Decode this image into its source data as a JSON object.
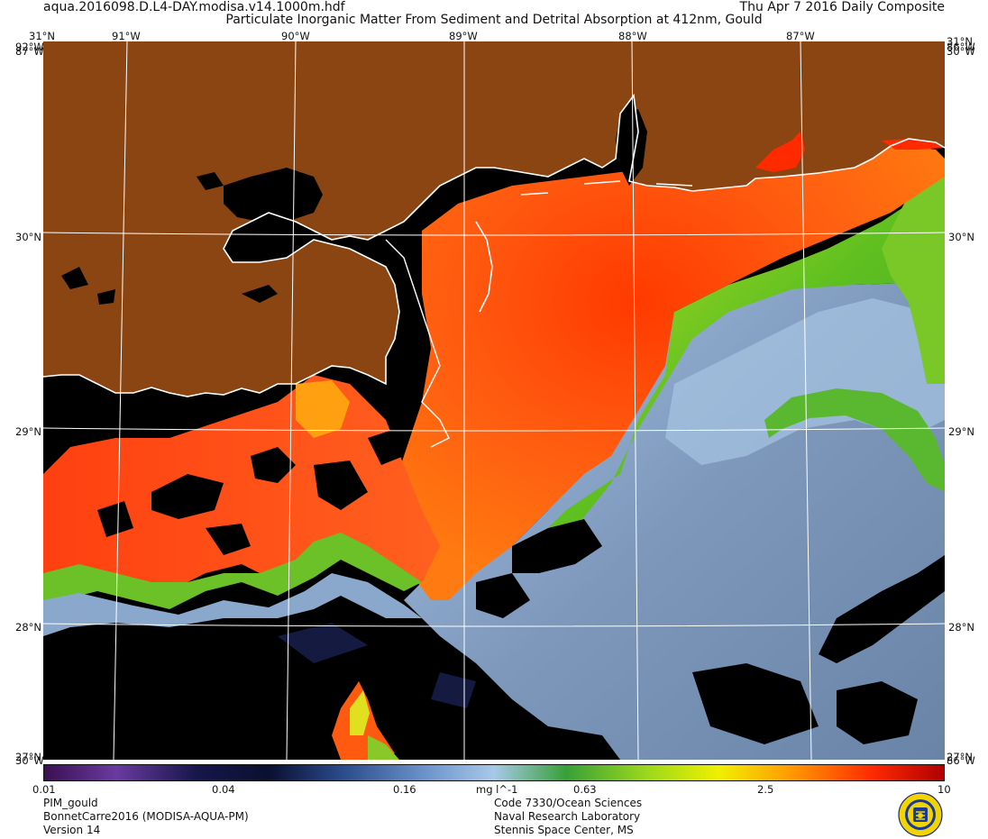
{
  "header": {
    "filename": "aqua.2016098.D.L4-DAY.modisa.v14.1000m.hdf",
    "title": "Particulate Inorganic Matter From Sediment and Detrital Absorption at 412nm, Gould",
    "date": "Thu Apr  7 2016 Daily Composite"
  },
  "map": {
    "top_labels": [
      "31°N",
      "91°W",
      "90°W",
      "89°W",
      "88°W",
      "87°W",
      "31°N"
    ],
    "left_labels": [
      "30°N",
      "29°N",
      "28°N"
    ],
    "right_labels": [
      "30°N",
      "29°N",
      "28°N"
    ],
    "corner_labels": {
      "top_left_1": "92°W",
      "top_left_2": "87°W",
      "top_right_1": "86°W",
      "top_right_2": "30°W",
      "bottom_left_1": "27°N",
      "bottom_left_2": "30°W",
      "bottom_right_1": "27°N",
      "bottom_right_2": "86°W"
    }
  },
  "colorbar": {
    "labels": [
      "0.01",
      "0.04",
      "0.16",
      "mg l^-1",
      "0.63",
      "2.5",
      "10"
    ],
    "colors": [
      "#3a1050",
      "#6a3aa0",
      "#16164a",
      "#0a1030",
      "#2a4a8a",
      "#6a90c8",
      "#a8c8e8",
      "#38a038",
      "#9cd81c",
      "#f0f000",
      "#ff9a00",
      "#ff2a00",
      "#b00000"
    ]
  },
  "footer": {
    "left": [
      "PIM_gould",
      "BonnetCarre2016 (MODISA-AQUA-PM)",
      "Version 14"
    ],
    "right": [
      "Code 7330/Ocean Sciences",
      "Naval Research Laboratory",
      "Stennis Space Center, MS"
    ]
  },
  "colors": {
    "land": "#8b4513",
    "no_data": "#000000",
    "grid": "#ffffff"
  },
  "icons": {
    "logo": "nrl-seal-icon"
  }
}
